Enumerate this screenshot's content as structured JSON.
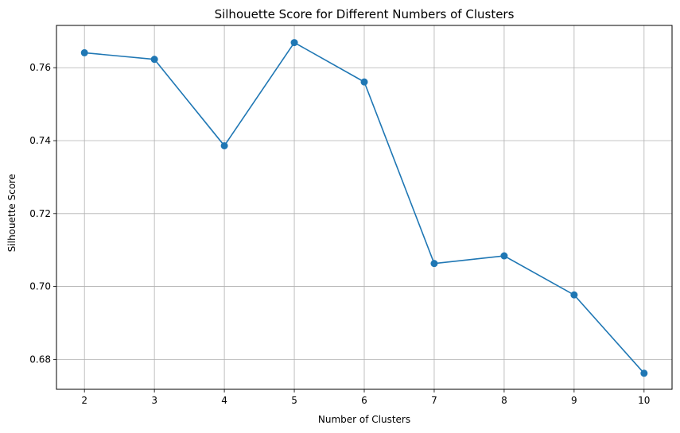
{
  "chart_data": {
    "type": "line",
    "title": "Silhouette Score for Different Numbers of Clusters",
    "xlabel": "Number of Clusters",
    "ylabel": "Silhouette Score",
    "x": [
      2,
      3,
      4,
      5,
      6,
      7,
      8,
      9,
      10
    ],
    "series": [
      {
        "values": [
          0.7641,
          0.7623,
          0.7386,
          0.7669,
          0.7561,
          0.7063,
          0.7084,
          0.6977,
          0.6762
        ],
        "color": "#1f77b4",
        "marker": "circle"
      }
    ],
    "xlim": [
      1.6,
      10.4
    ],
    "ylim": [
      0.6718,
      0.7716
    ],
    "x_ticks": [
      2,
      3,
      4,
      5,
      6,
      7,
      8,
      9,
      10
    ],
    "y_ticks": [
      0.68,
      0.7,
      0.72,
      0.74,
      0.76
    ],
    "y_tick_labels": [
      "0.68",
      "0.70",
      "0.72",
      "0.74",
      "0.76"
    ],
    "grid": true,
    "grid_color": "#b0b0b0"
  }
}
